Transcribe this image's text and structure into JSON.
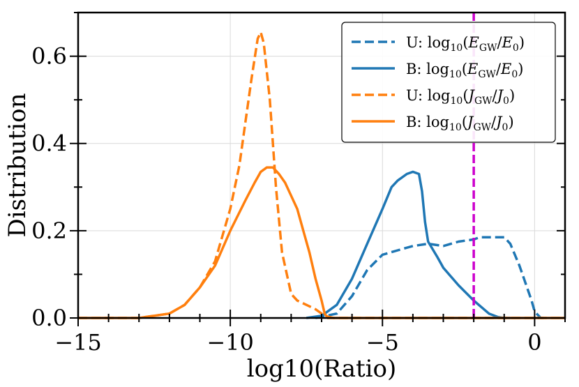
{
  "chart_data": {
    "type": "line",
    "xlabel": "log10(Ratio)",
    "ylabel": "Distribution",
    "xlim": [
      -15,
      1
    ],
    "ylim": [
      0,
      0.7
    ],
    "grid": true,
    "x_ticks": [
      -15,
      -10,
      -5,
      0
    ],
    "x_tick_labels": [
      "−15",
      "−10",
      "−5",
      "0"
    ],
    "y_ticks": [
      0.0,
      0.2,
      0.4,
      0.6
    ],
    "y_tick_labels": [
      "0.0",
      "0.2",
      "0.4",
      "0.6"
    ],
    "legend_position": "top-right",
    "vline": {
      "x": -2,
      "color": "#cc00cc",
      "style": "dashed"
    },
    "series": [
      {
        "name": "U: log10(E_GW/E_0)",
        "legend": {
          "prefix": "U: log",
          "sub1": "10",
          "mid1": "(",
          "italic1": "E",
          "sub2": "GW",
          "mid2": "/",
          "italic2": "E",
          "sub3": "0",
          "end": ")"
        },
        "color": "#1f77b4",
        "dashed": true,
        "x": [
          -7.2,
          -6.5,
          -6.0,
          -5.5,
          -5.0,
          -4.5,
          -4.0,
          -3.5,
          -3.0,
          -2.5,
          -2.0,
          -1.8,
          -1.5,
          -1.2,
          -1.0,
          -0.8,
          -0.5,
          -0.3,
          -0.1,
          0.0,
          0.2,
          0.4
        ],
        "y": [
          0.0,
          0.01,
          0.05,
          0.11,
          0.145,
          0.155,
          0.165,
          0.17,
          0.165,
          0.175,
          0.18,
          0.185,
          0.185,
          0.185,
          0.185,
          0.17,
          0.12,
          0.08,
          0.04,
          0.015,
          0.0,
          0.0
        ]
      },
      {
        "name": "B: log10(E_GW/E_0)",
        "legend": {
          "prefix": "B: log",
          "sub1": "10",
          "mid1": "(",
          "italic1": "E",
          "sub2": "GW",
          "mid2": "/",
          "italic2": "E",
          "sub3": "0",
          "end": ")"
        },
        "color": "#1f77b4",
        "dashed": false,
        "x": [
          -7.5,
          -7.0,
          -6.5,
          -6.0,
          -5.5,
          -5.0,
          -4.7,
          -4.5,
          -4.2,
          -4.0,
          -3.8,
          -3.7,
          -3.6,
          -3.5,
          -3.2,
          -3.0,
          -2.5,
          -2.0,
          -1.5,
          -1.2,
          -1.0,
          -0.8
        ],
        "y": [
          0.0,
          0.005,
          0.03,
          0.09,
          0.17,
          0.25,
          0.3,
          0.315,
          0.33,
          0.335,
          0.33,
          0.29,
          0.22,
          0.175,
          0.14,
          0.115,
          0.075,
          0.04,
          0.01,
          0.002,
          0.0,
          0.0
        ]
      },
      {
        "name": "U: log10(J_GW/J_0)",
        "legend": {
          "prefix": "U: log",
          "sub1": "10",
          "mid1": "(",
          "italic1": "J",
          "sub2": "GW",
          "mid2": "/",
          "italic2": "J",
          "sub3": "0",
          "end": ")"
        },
        "color": "#ff7f0e",
        "dashed": true,
        "x": [
          -15,
          -13.0,
          -12.0,
          -11.5,
          -11.0,
          -10.5,
          -10.0,
          -9.7,
          -9.5,
          -9.3,
          -9.1,
          -9.0,
          -8.9,
          -8.7,
          -8.5,
          -8.3,
          -8.0,
          -7.8,
          -7.5,
          -7.2,
          -7.0,
          -6.8,
          -6.6,
          1
        ],
        "y": [
          0.0,
          0.0,
          0.01,
          0.03,
          0.07,
          0.13,
          0.25,
          0.35,
          0.45,
          0.55,
          0.64,
          0.655,
          0.63,
          0.5,
          0.3,
          0.15,
          0.055,
          0.04,
          0.03,
          0.02,
          0.01,
          0.003,
          0.0,
          0.0
        ]
      },
      {
        "name": "B: log10(J_GW/J_0)",
        "legend": {
          "prefix": "B: log",
          "sub1": "10",
          "mid1": "(",
          "italic1": "J",
          "sub2": "GW",
          "mid2": "/",
          "italic2": "J",
          "sub3": "0",
          "end": ")"
        },
        "color": "#ff7f0e",
        "dashed": false,
        "x": [
          -15,
          -13.0,
          -12.0,
          -11.5,
          -11.0,
          -10.5,
          -10.0,
          -9.5,
          -9.2,
          -9.0,
          -8.8,
          -8.6,
          -8.4,
          -8.2,
          -8.0,
          -7.8,
          -7.6,
          -7.4,
          -7.2,
          -7.0,
          -6.9,
          -6.8,
          1
        ],
        "y": [
          0.0,
          0.0,
          0.01,
          0.03,
          0.07,
          0.12,
          0.2,
          0.27,
          0.31,
          0.335,
          0.345,
          0.345,
          0.33,
          0.31,
          0.28,
          0.25,
          0.2,
          0.15,
          0.09,
          0.04,
          0.01,
          0.0,
          0.0
        ]
      }
    ]
  }
}
